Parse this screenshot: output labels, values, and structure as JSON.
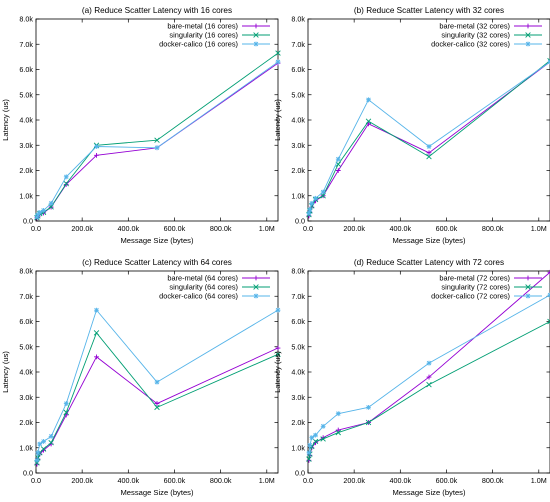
{
  "colors": {
    "bare-metal": "#9400d3",
    "singularity": "#009e73",
    "docker-calico": "#56b4e9"
  },
  "chart_data": [
    {
      "type": "line",
      "title": "(a) Reduce Scatter Latency with 16 cores",
      "xlabel": "Message Size (bytes)",
      "ylabel": "Latency (us)",
      "xlim": [
        0,
        1048576
      ],
      "ylim": [
        0,
        8000
      ],
      "xticks": [
        {
          "value": 0,
          "label": "0.0"
        },
        {
          "value": 200000,
          "label": "200.0k"
        },
        {
          "value": 400000,
          "label": "400.0k"
        },
        {
          "value": 600000,
          "label": "600.0k"
        },
        {
          "value": 800000,
          "label": "800.0k"
        },
        {
          "value": 1000000,
          "label": "1.0M"
        }
      ],
      "yticks": [
        {
          "value": 0,
          "label": "0.0"
        },
        {
          "value": 1000,
          "label": "1.0k"
        },
        {
          "value": 2000,
          "label": "2.0k"
        },
        {
          "value": 3000,
          "label": "3.0k"
        },
        {
          "value": 4000,
          "label": "4.0k"
        },
        {
          "value": 5000,
          "label": "5.0k"
        },
        {
          "value": 6000,
          "label": "6.0k"
        },
        {
          "value": 7000,
          "label": "7.0k"
        },
        {
          "value": 8000,
          "label": "8.0k"
        }
      ],
      "legend_position": "top-right",
      "x": [
        4096,
        8192,
        16384,
        32768,
        65536,
        131072,
        262144,
        524288,
        1048576
      ],
      "series": [
        {
          "name": "bare-metal (16 cores)",
          "key": "bare-metal",
          "values": [
            120,
            180,
            260,
            320,
            550,
            1450,
            2600,
            2900,
            6250
          ]
        },
        {
          "name": "singularity (16 cores)",
          "key": "singularity",
          "values": [
            130,
            200,
            290,
            340,
            560,
            1480,
            3000,
            3200,
            6650
          ]
        },
        {
          "name": "docker-calico (16 cores)",
          "key": "docker-calico",
          "values": [
            160,
            250,
            340,
            420,
            700,
            1750,
            2950,
            2900,
            6300
          ]
        }
      ]
    },
    {
      "type": "line",
      "title": "(b) Reduce Scatter Latency with 32 cores",
      "xlabel": "Message Size (bytes)",
      "ylabel": "Latency (us)",
      "xlim": [
        0,
        1048576
      ],
      "ylim": [
        0,
        8000
      ],
      "xticks": [
        {
          "value": 0,
          "label": "0.0"
        },
        {
          "value": 200000,
          "label": "200.0k"
        },
        {
          "value": 400000,
          "label": "400.0k"
        },
        {
          "value": 600000,
          "label": "600.0k"
        },
        {
          "value": 800000,
          "label": "800.0k"
        },
        {
          "value": 1000000,
          "label": "1.0M"
        }
      ],
      "yticks": [
        {
          "value": 0,
          "label": "0.0"
        },
        {
          "value": 1000,
          "label": "1.0k"
        },
        {
          "value": 2000,
          "label": "2.0k"
        },
        {
          "value": 3000,
          "label": "3.0k"
        },
        {
          "value": 4000,
          "label": "4.0k"
        },
        {
          "value": 5000,
          "label": "5.0k"
        },
        {
          "value": 6000,
          "label": "6.0k"
        },
        {
          "value": 7000,
          "label": "7.0k"
        },
        {
          "value": 8000,
          "label": "8.0k"
        }
      ],
      "legend_position": "top-right",
      "x": [
        4096,
        8192,
        16384,
        32768,
        65536,
        131072,
        262144,
        524288,
        1048576
      ],
      "series": [
        {
          "name": "bare-metal (32 cores)",
          "key": "bare-metal",
          "values": [
            200,
            350,
            550,
            800,
            1000,
            2000,
            3850,
            2700,
            6300
          ]
        },
        {
          "name": "singularity (32 cores)",
          "key": "singularity",
          "values": [
            250,
            400,
            600,
            850,
            1000,
            2250,
            3950,
            2550,
            6350
          ]
        },
        {
          "name": "docker-calico (32 cores)",
          "key": "docker-calico",
          "values": [
            300,
            450,
            700,
            900,
            1150,
            2450,
            4800,
            2950,
            6300
          ]
        }
      ]
    },
    {
      "type": "line",
      "title": "(c) Reduce Scatter Latency with 64 cores",
      "xlabel": "Message Size (bytes)",
      "ylabel": "Latency (us)",
      "xlim": [
        0,
        1048576
      ],
      "ylim": [
        0,
        8000
      ],
      "xticks": [
        {
          "value": 0,
          "label": "0.0"
        },
        {
          "value": 200000,
          "label": "200.0k"
        },
        {
          "value": 400000,
          "label": "400.0k"
        },
        {
          "value": 600000,
          "label": "600.0k"
        },
        {
          "value": 800000,
          "label": "800.0k"
        },
        {
          "value": 1000000,
          "label": "1.0M"
        }
      ],
      "yticks": [
        {
          "value": 0,
          "label": "0.0"
        },
        {
          "value": 1000,
          "label": "1.0k"
        },
        {
          "value": 2000,
          "label": "2.0k"
        },
        {
          "value": 3000,
          "label": "3.0k"
        },
        {
          "value": 4000,
          "label": "4.0k"
        },
        {
          "value": 5000,
          "label": "5.0k"
        },
        {
          "value": 6000,
          "label": "6.0k"
        },
        {
          "value": 7000,
          "label": "7.0k"
        },
        {
          "value": 8000,
          "label": "8.0k"
        }
      ],
      "legend_position": "top-right",
      "x": [
        4096,
        8192,
        16384,
        32768,
        65536,
        131072,
        262144,
        524288,
        1048576
      ],
      "series": [
        {
          "name": "bare-metal (64 cores)",
          "key": "bare-metal",
          "values": [
            350,
            550,
            750,
            900,
            1150,
            2300,
            4600,
            2750,
            4950
          ]
        },
        {
          "name": "singularity (64 cores)",
          "key": "singularity",
          "values": [
            400,
            600,
            800,
            950,
            1200,
            2400,
            5550,
            2600,
            4700
          ]
        },
        {
          "name": "docker-calico (64 cores)",
          "key": "docker-calico",
          "values": [
            500,
            800,
            1150,
            1250,
            1450,
            2750,
            6450,
            3600,
            6450
          ]
        }
      ]
    },
    {
      "type": "line",
      "title": "(d) Reduce Scatter Latency with 72 cores",
      "xlabel": "Message Size (bytes)",
      "ylabel": "Latency (us)",
      "xlim": [
        0,
        1048576
      ],
      "ylim": [
        0,
        8000
      ],
      "xticks": [
        {
          "value": 0,
          "label": "0.0"
        },
        {
          "value": 200000,
          "label": "200.0k"
        },
        {
          "value": 400000,
          "label": "400.0k"
        },
        {
          "value": 600000,
          "label": "600.0k"
        },
        {
          "value": 800000,
          "label": "800.0k"
        },
        {
          "value": 1000000,
          "label": "1.0M"
        }
      ],
      "yticks": [
        {
          "value": 0,
          "label": "0.0"
        },
        {
          "value": 1000,
          "label": "1.0k"
        },
        {
          "value": 2000,
          "label": "2.0k"
        },
        {
          "value": 3000,
          "label": "3.0k"
        },
        {
          "value": 4000,
          "label": "4.0k"
        },
        {
          "value": 5000,
          "label": "5.0k"
        },
        {
          "value": 6000,
          "label": "6.0k"
        },
        {
          "value": 7000,
          "label": "7.0k"
        },
        {
          "value": 8000,
          "label": "8.0k"
        }
      ],
      "legend_position": "top-right",
      "x": [
        4096,
        8192,
        16384,
        32768,
        65536,
        131072,
        262144,
        524288,
        1048576
      ],
      "series": [
        {
          "name": "bare-metal (72 cores)",
          "key": "bare-metal",
          "values": [
            500,
            700,
            1000,
            1200,
            1400,
            1700,
            2000,
            3800,
            7950
          ]
        },
        {
          "name": "singularity (72 cores)",
          "key": "singularity",
          "values": [
            550,
            750,
            1050,
            1250,
            1350,
            1600,
            2000,
            3500,
            6000
          ]
        },
        {
          "name": "docker-calico (72 cores)",
          "key": "docker-calico",
          "values": [
            800,
            1100,
            1400,
            1500,
            1850,
            2350,
            2600,
            4350,
            7050
          ]
        }
      ]
    }
  ]
}
